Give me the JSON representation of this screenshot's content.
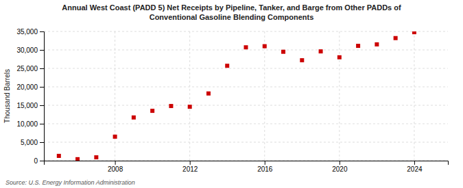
{
  "chart_data": {
    "type": "scatter",
    "title": "Annual West Coast (PADD 5) Net Receipts by Pipeline, Tanker, and Barge from Other PADDs of\nConventional Gasoline Blending Components",
    "ylabel": "Thousand Barrels",
    "source": "Source: U.S. Energy Information Administration",
    "x": [
      2005,
      2006,
      2007,
      2008,
      2009,
      2010,
      2011,
      2012,
      2013,
      2014,
      2015,
      2016,
      2017,
      2018,
      2019,
      2020,
      2021,
      2022,
      2023,
      2024
    ],
    "values": [
      1300,
      400,
      900,
      6500,
      11700,
      13500,
      14800,
      14600,
      18200,
      25700,
      30700,
      31000,
      29500,
      27200,
      29600,
      28000,
      31100,
      31500,
      33200,
      34800
    ],
    "color": "#cc0000",
    "marker": "square",
    "xlim": [
      2004.2,
      2025.8
    ],
    "xticks": [
      2008,
      2012,
      2016,
      2020,
      2024
    ],
    "ylim": [
      0,
      35000
    ],
    "yticks": [
      0,
      {
        "value": 5000,
        "label": "5,000"
      },
      {
        "value": 10000,
        "label": "10,000"
      },
      {
        "value": 15000,
        "label": "15,000"
      },
      {
        "value": 20000,
        "label": "20,000"
      },
      {
        "value": 25000,
        "label": "25,000"
      },
      {
        "value": 30000,
        "label": "30,000"
      },
      {
        "value": 35000,
        "label": "35,000"
      }
    ],
    "grid": true
  }
}
